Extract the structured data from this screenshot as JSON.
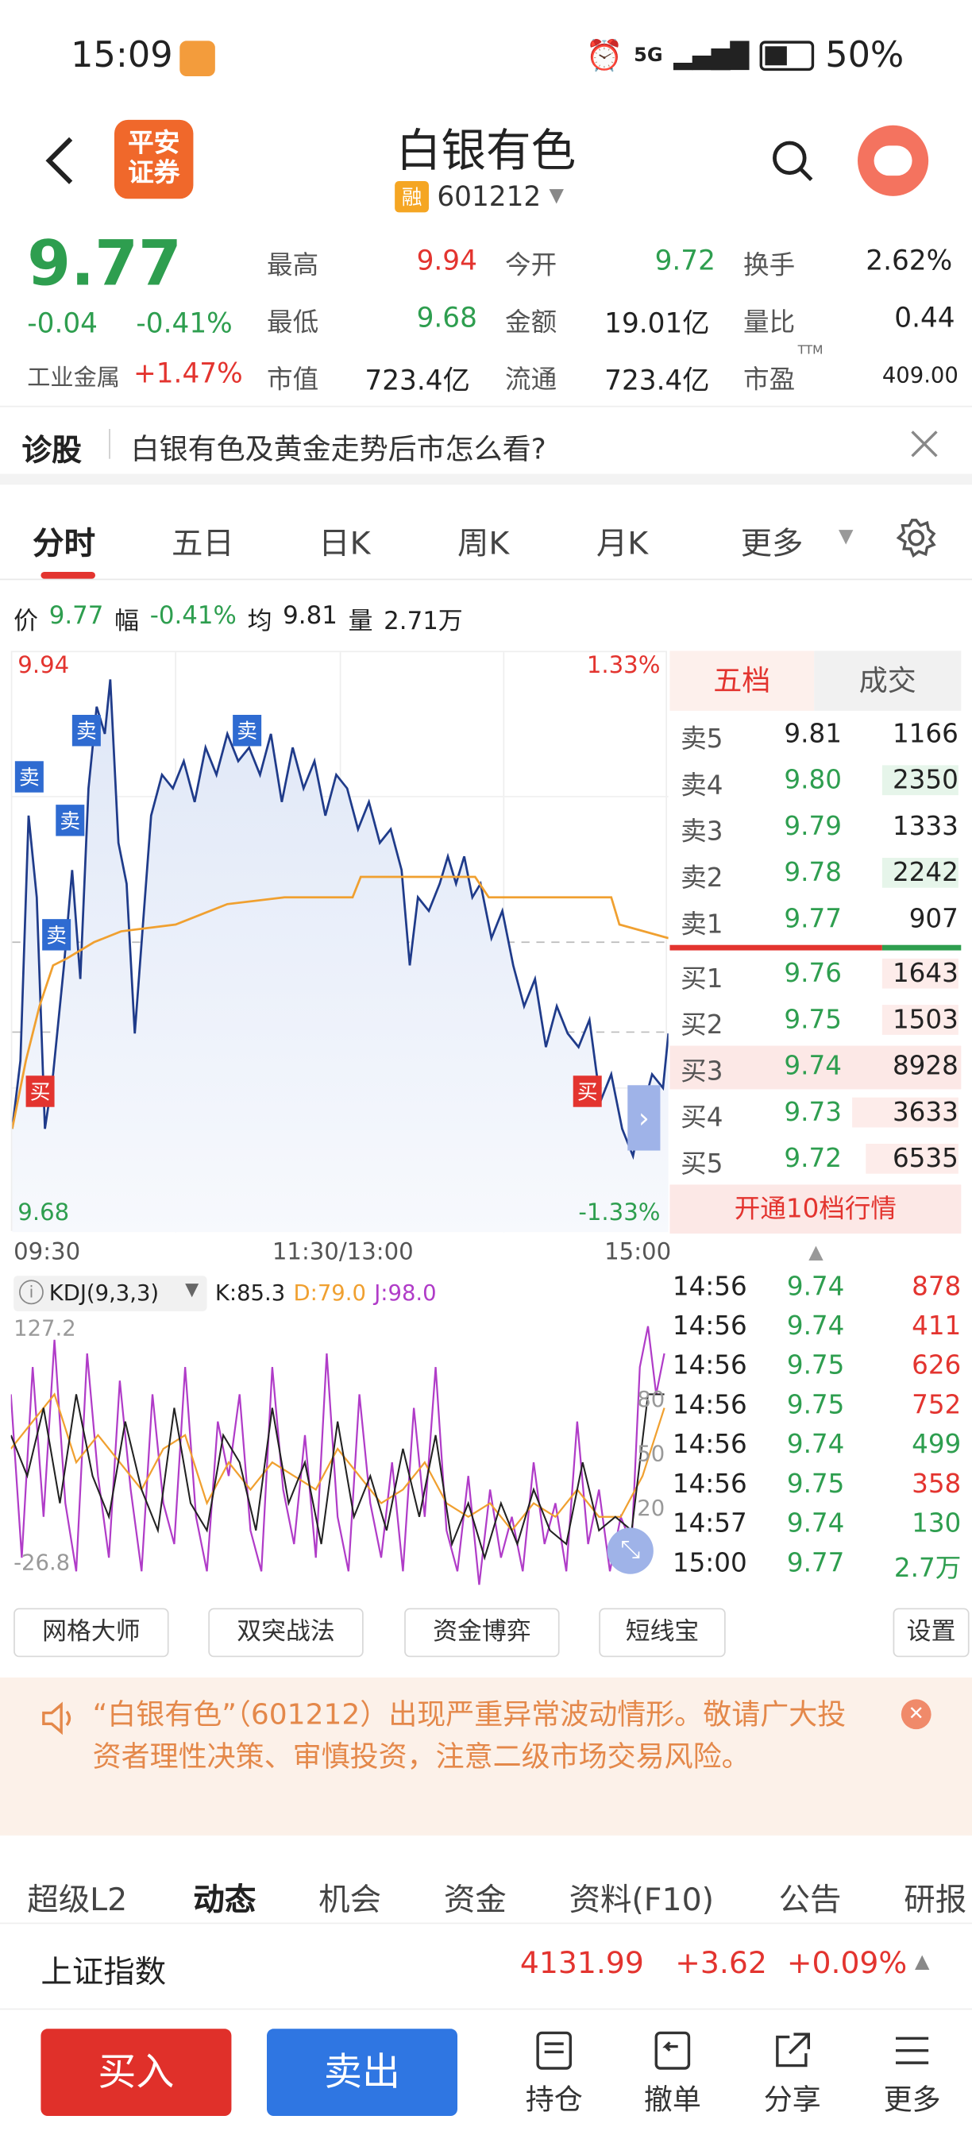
{
  "status_bar": {
    "time": "15:09",
    "network": "5G",
    "battery": "50%"
  },
  "header": {
    "logo_text": "平安证券",
    "title": "白银有色",
    "rong": "融",
    "code": "601212"
  },
  "quote": {
    "price": "9.77",
    "change": "-0.04",
    "change_pct": "-0.41%",
    "sector": "工业金属",
    "sector_pct": "+1.47%",
    "high_label": "最高",
    "high": "9.94",
    "low_label": "最低",
    "low": "9.68",
    "mcap_label": "市值",
    "mcap": "723.4亿",
    "open_label": "今开",
    "open": "9.72",
    "amount_label": "金额",
    "amount": "19.01亿",
    "float_label": "流通",
    "float": "723.4亿",
    "turnover_label": "换手",
    "turnover": "2.62%",
    "vol_ratio_label": "量比",
    "vol_ratio": "0.44",
    "pe_label": "市盈",
    "pe_sup": "TTM",
    "pe": "409.00"
  },
  "diagnosis": {
    "label": "诊股",
    "text": "白银有色及黄金走势后市怎么看?"
  },
  "tabs": [
    "分时",
    "五日",
    "日K",
    "周K",
    "月K",
    "更多"
  ],
  "info": {
    "price_label": "价",
    "price": "9.77",
    "range_label": "幅",
    "range": "-0.41%",
    "avg_label": "均",
    "avg": "9.81",
    "vol_label": "量",
    "vol": "2.71万"
  },
  "chart_labels": {
    "top_price": "9.94",
    "top_pct": "1.33%",
    "bottom_price": "9.68",
    "bottom_pct": "-1.33%",
    "t_start": "09:30",
    "t_mid": "11:30/13:00",
    "t_end": "15:00",
    "sell": "卖",
    "buy": "买"
  },
  "orderbook": {
    "tab_active": "五档",
    "tab_other": "成交",
    "asks": [
      {
        "label": "卖5",
        "price": "9.81",
        "vol": "1166"
      },
      {
        "label": "卖4",
        "price": "9.80",
        "vol": "2350"
      },
      {
        "label": "卖3",
        "price": "9.79",
        "vol": "1333"
      },
      {
        "label": "卖2",
        "price": "9.78",
        "vol": "2242"
      },
      {
        "label": "卖1",
        "price": "9.77",
        "vol": "907"
      }
    ],
    "bids": [
      {
        "label": "买1",
        "price": "9.76",
        "vol": "1643"
      },
      {
        "label": "买2",
        "price": "9.75",
        "vol": "1503"
      },
      {
        "label": "买3",
        "price": "9.74",
        "vol": "8928"
      },
      {
        "label": "买4",
        "price": "9.73",
        "vol": "3633"
      },
      {
        "label": "买5",
        "price": "9.72",
        "vol": "6535"
      }
    ],
    "open10": "开通10档行情"
  },
  "kdj": {
    "name": "KDJ(9,3,3)",
    "k": "K:85.3",
    "d": "D:79.0",
    "j": "J:98.0",
    "top": "127.2",
    "bottom": "-26.8",
    "l80": "80",
    "l50": "50",
    "l20": "20"
  },
  "ticks": [
    {
      "time": "14:56",
      "price": "9.74",
      "vol": "878"
    },
    {
      "time": "14:56",
      "price": "9.74",
      "vol": "411"
    },
    {
      "time": "14:56",
      "price": "9.75",
      "vol": "626"
    },
    {
      "time": "14:56",
      "price": "9.75",
      "vol": "752"
    },
    {
      "time": "14:56",
      "price": "9.74",
      "vol": "499"
    },
    {
      "time": "14:56",
      "price": "9.75",
      "vol": "358"
    },
    {
      "time": "14:57",
      "price": "9.74",
      "vol": "130"
    },
    {
      "time": "15:00",
      "price": "9.77",
      "vol": "2.7万"
    }
  ],
  "tools": [
    "网格大师",
    "双突战法",
    "资金博弈",
    "短线宝",
    "设置"
  ],
  "notice": "“白银有色”（601212）出现严重异常波动情形。敬请广大投资者理性决策、审慎投资，注意二级市场交易风险。",
  "bottom_tabs": [
    "超级L2",
    "动态",
    "机会",
    "资金",
    "资料(F10)",
    "公告",
    "研报"
  ],
  "index": {
    "name": "上证指数",
    "value": "4131.99",
    "change": "+3.62",
    "pct": "+0.09%"
  },
  "actions": {
    "buy": "买入",
    "sell": "卖出",
    "hold": "持仓",
    "cancel": "撤单",
    "share": "分享",
    "more": "更多"
  },
  "colors": {
    "up": "#e3342f",
    "down": "#2e9e4f",
    "price_line": "#1f3b8a",
    "avg_line": "#f0a030",
    "brand": "#f0682b"
  }
}
